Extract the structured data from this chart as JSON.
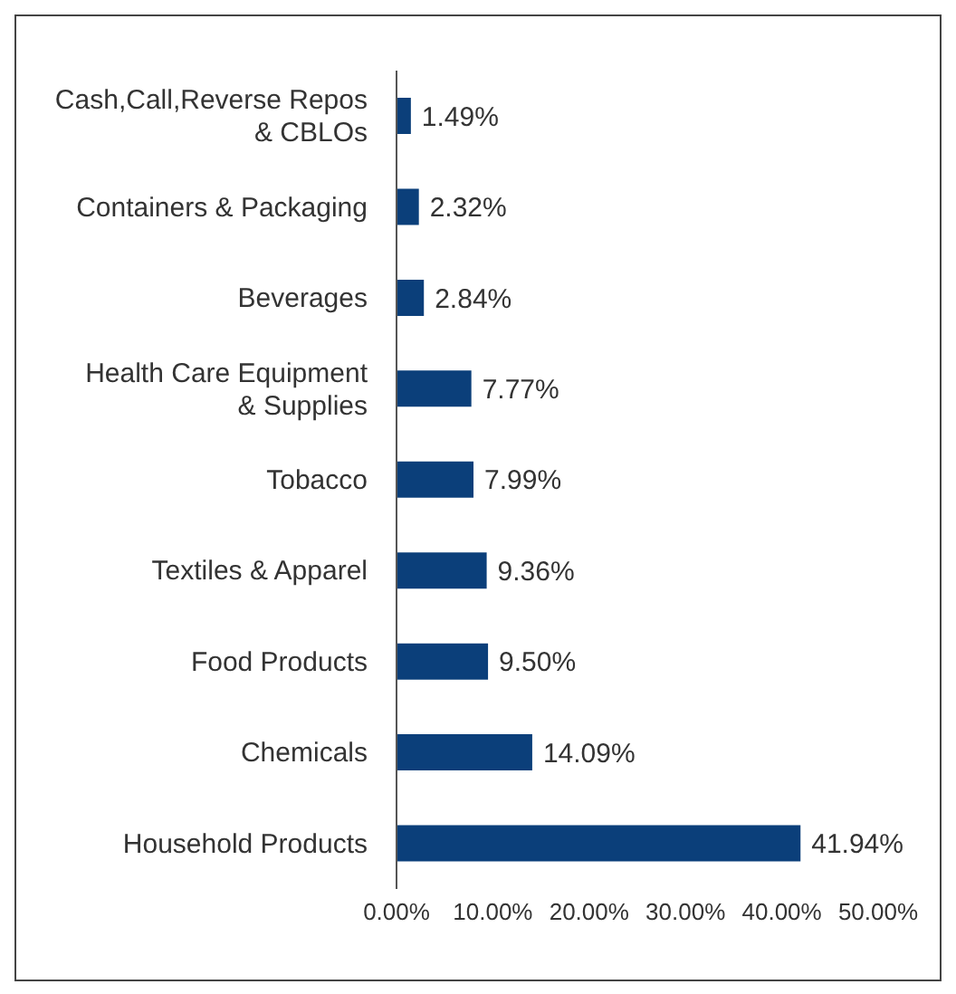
{
  "chart_data": {
    "type": "bar",
    "orientation": "horizontal",
    "categories": [
      "Cash,Call,Reverse Repos & CBLOs",
      "Containers & Packaging",
      "Beverages",
      "Health Care Equipment & Supplies",
      "Tobacco",
      "Textiles & Apparel",
      "Food Products",
      "Chemicals",
      "Household Products"
    ],
    "values": [
      1.49,
      2.32,
      2.84,
      7.77,
      7.99,
      9.36,
      9.5,
      14.09,
      41.94
    ],
    "value_labels": [
      "1.49%",
      "2.32%",
      "2.84%",
      "7.77%",
      "7.99%",
      "9.36%",
      "9.50%",
      "14.09%",
      "41.94%"
    ],
    "color": "#0b3f7a",
    "xlim": [
      0,
      50
    ],
    "xticks": [
      {
        "value": 0,
        "label": "0.00%"
      },
      {
        "value": 10,
        "label": "10.00%"
      },
      {
        "value": 20,
        "label": "20.00%"
      },
      {
        "value": 30,
        "label": "30.00%"
      },
      {
        "value": 40,
        "label": "40.00%"
      },
      {
        "value": 50,
        "label": "50.00%"
      }
    ],
    "grid": false,
    "legend": false
  }
}
